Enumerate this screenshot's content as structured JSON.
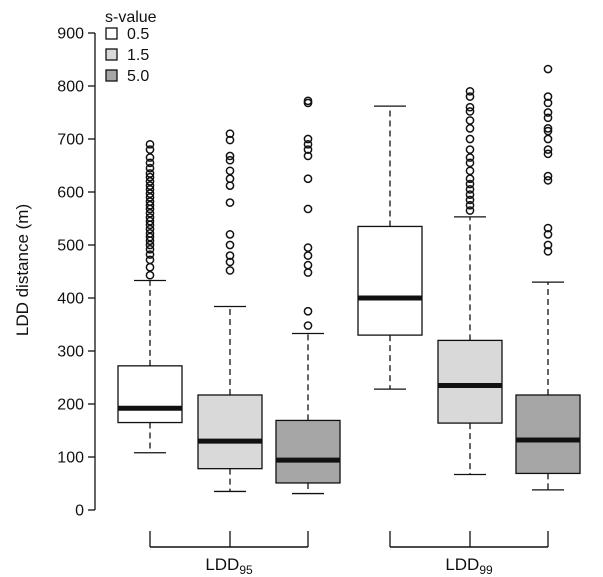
{
  "chart_data": {
    "type": "boxplot",
    "ylabel": "LDD distance (m)",
    "ylim": [
      0,
      900
    ],
    "yticks": [
      0,
      100,
      200,
      300,
      400,
      500,
      600,
      700,
      800,
      900
    ],
    "legend": {
      "title": "s-value",
      "placement": "top-left",
      "entries": [
        {
          "label": "0.5",
          "color": "#ffffff"
        },
        {
          "label": "1.5",
          "color": "#d9d9d9"
        },
        {
          "label": "5.0",
          "color": "#a6a6a6"
        }
      ]
    },
    "groups": [
      {
        "label": "LDD",
        "sub": "95"
      },
      {
        "label": "LDD",
        "sub": "99"
      }
    ],
    "boxes": [
      {
        "group": 0,
        "series": "0.5",
        "whisker_low": 108,
        "q1": 165,
        "median": 192,
        "q3": 272,
        "whisker_high": 433,
        "outliers": [
          443,
          458,
          472,
          482,
          492,
          500,
          508,
          515,
          522,
          530,
          538,
          545,
          552,
          560,
          568,
          575,
          582,
          590,
          597,
          605,
          612,
          620,
          628,
          635,
          645,
          655,
          665,
          680,
          690
        ]
      },
      {
        "group": 0,
        "series": "1.5",
        "whisker_low": 35,
        "q1": 78,
        "median": 130,
        "q3": 217,
        "whisker_high": 384,
        "outliers": [
          452,
          468,
          480,
          500,
          520,
          580,
          612,
          625,
          640,
          660,
          668,
          698,
          710
        ]
      },
      {
        "group": 0,
        "series": "5.0",
        "whisker_low": 31,
        "q1": 51,
        "median": 94,
        "q3": 169,
        "whisker_high": 333,
        "outliers": [
          348,
          375,
          448,
          462,
          480,
          495,
          568,
          625,
          668,
          680,
          690,
          700,
          768,
          772
        ]
      },
      {
        "group": 1,
        "series": "0.5",
        "whisker_low": 228,
        "q1": 330,
        "median": 400,
        "q3": 535,
        "whisker_high": 762,
        "outliers": []
      },
      {
        "group": 1,
        "series": "1.5",
        "whisker_low": 67,
        "q1": 164,
        "median": 235,
        "q3": 320,
        "whisker_high": 553,
        "outliers": [
          565,
          575,
          585,
          595,
          605,
          615,
          625,
          640,
          655,
          665,
          680,
          700,
          720,
          735,
          752,
          760,
          780,
          790
        ]
      },
      {
        "group": 1,
        "series": "5.0",
        "whisker_low": 38,
        "q1": 69,
        "median": 132,
        "q3": 217,
        "whisker_high": 430,
        "outliers": [
          488,
          500,
          520,
          532,
          622,
          630,
          672,
          680,
          700,
          715,
          720,
          740,
          750,
          768,
          780,
          832
        ]
      }
    ]
  }
}
